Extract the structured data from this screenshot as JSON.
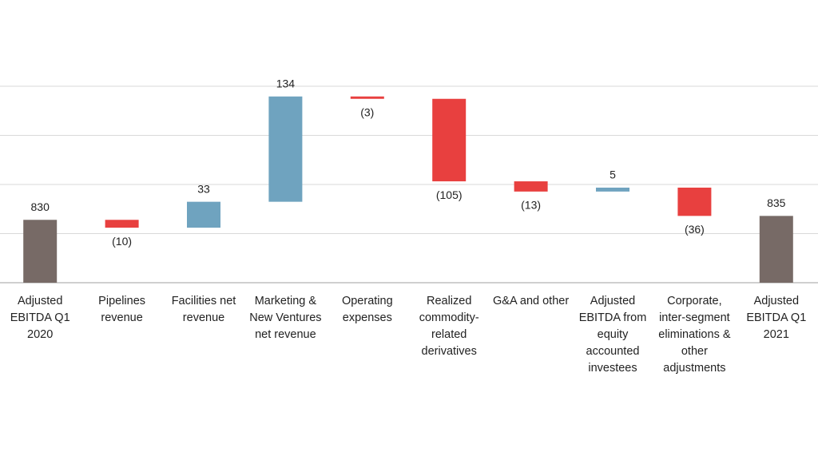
{
  "chart_data": {
    "type": "waterfall",
    "categories": [
      "Adjusted EBITDA Q1 2020",
      "Pipelines revenue",
      "Facilities net revenue",
      "Marketing & New Ventures net revenue",
      "Operating expenses",
      "Realized commodity-related derivatives",
      "G&A and other",
      "Adjusted EBITDA from equity accounted investees",
      "Corporate, inter-segment eliminations & other adjustments",
      "Adjusted EBITDA Q1 2021"
    ],
    "values": [
      830,
      -10,
      33,
      134,
      -3,
      -105,
      -13,
      5,
      -36,
      835
    ],
    "value_labels": [
      "830",
      "(10)",
      "33",
      "134",
      "(3)",
      "(105)",
      "(13)",
      "5",
      "(36)",
      "835"
    ],
    "measure": [
      "total",
      "relative",
      "relative",
      "relative",
      "relative",
      "relative",
      "relative",
      "relative",
      "relative",
      "total"
    ],
    "colors": {
      "total": "#776a66",
      "increase": "#6fa3bf",
      "decrease": "#e8403f"
    },
    "ylim": [
      750,
      1000
    ],
    "yticks": [
      750,
      812.5,
      875,
      937.5,
      1000
    ],
    "grid": true
  }
}
